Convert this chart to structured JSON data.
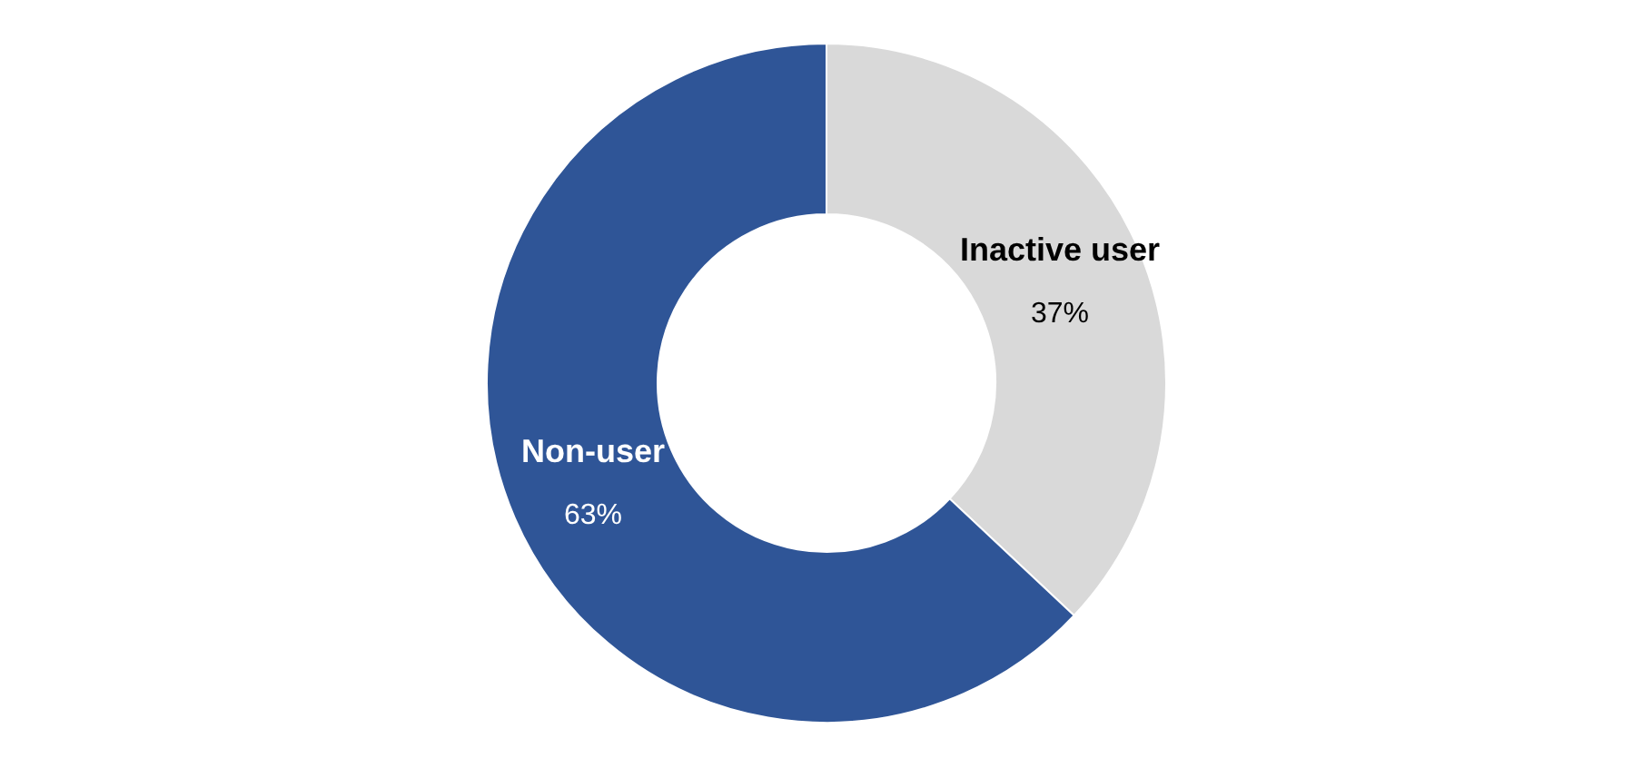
{
  "chart_data": {
    "type": "donut",
    "categories": [
      "Inactive user",
      "Non-user"
    ],
    "values": [
      37,
      63
    ],
    "colors": [
      "#d9d9d9",
      "#2f5597"
    ],
    "value_labels": [
      "37%",
      "63%"
    ]
  }
}
